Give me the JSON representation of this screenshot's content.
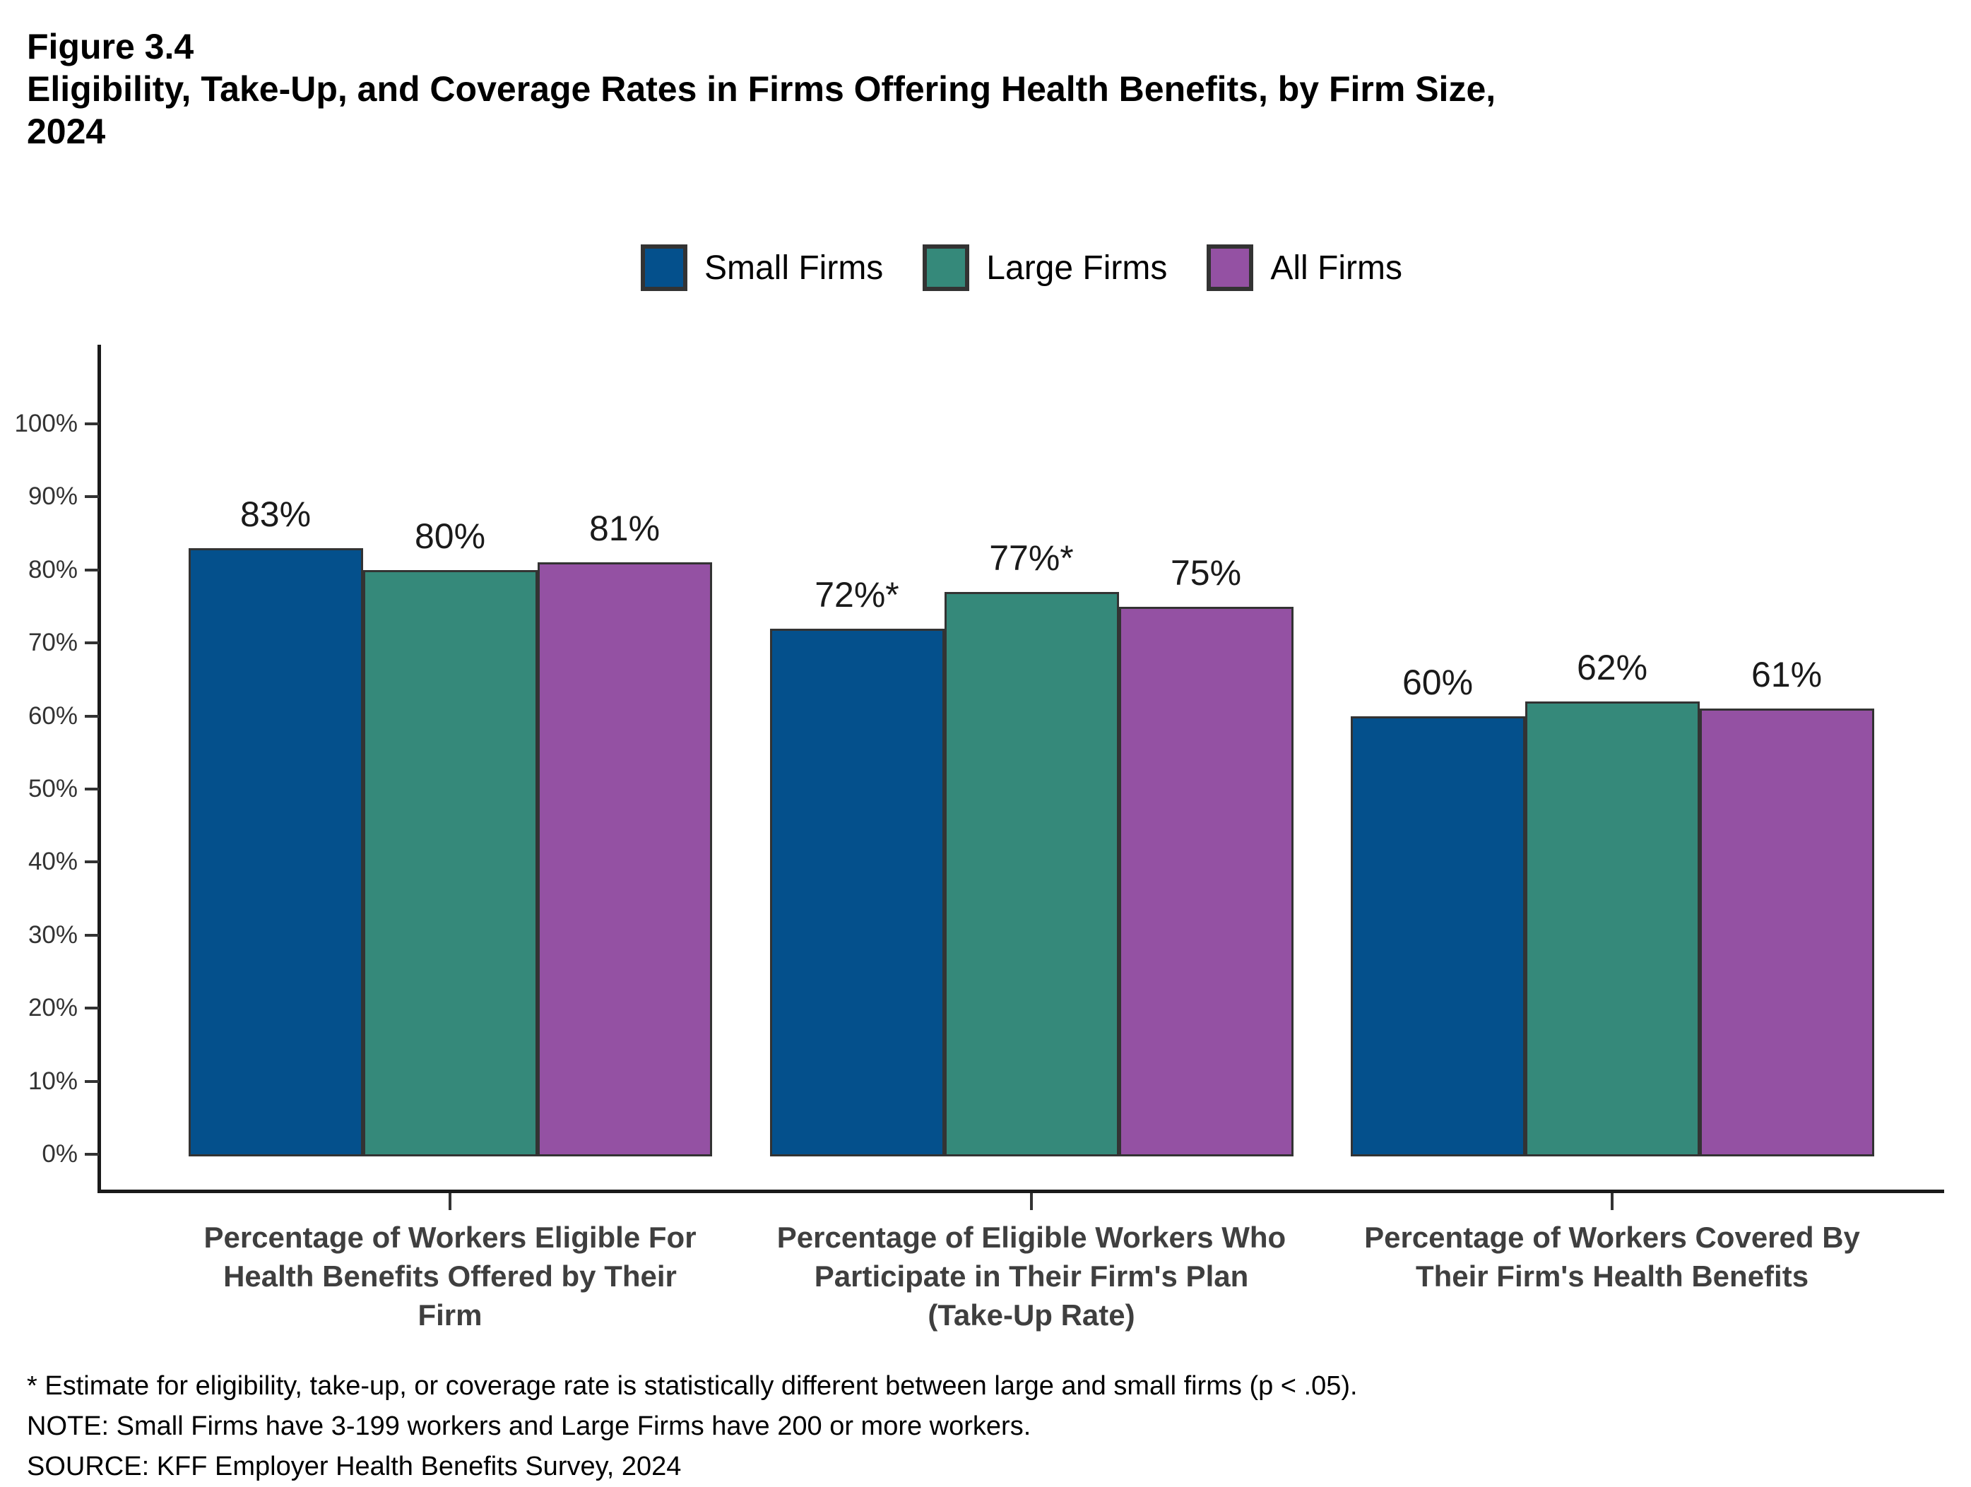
{
  "figure": {
    "label": "Figure 3.4",
    "title_lines": [
      "Eligibility, Take-Up, and Coverage Rates in Firms Offering Health Benefits, by Firm Size,",
      "2024"
    ]
  },
  "legend": [
    {
      "label": "Small Firms",
      "color": "#04508c"
    },
    {
      "label": "Large Firms",
      "color": "#35897a"
    },
    {
      "label": "All Firms",
      "color": "#9451a3"
    }
  ],
  "chart_data": {
    "type": "bar",
    "title": "Eligibility, Take-Up, and Coverage Rates in Firms Offering Health Benefits, by Firm Size, 2024",
    "categories": [
      "Percentage of Workers Eligible For Health Benefits Offered by Their Firm",
      "Percentage of Eligible Workers Who Participate in Their Firm's Plan (Take-Up Rate)",
      "Percentage of Workers Covered By Their Firm's Health Benefits"
    ],
    "category_lines": [
      [
        "Percentage of Workers Eligible For",
        "Health Benefits Offered by Their",
        "Firm"
      ],
      [
        "Percentage of Eligible Workers Who",
        "Participate in Their Firm's Plan",
        "(Take-Up Rate)"
      ],
      [
        "Percentage of Workers Covered By",
        "Their Firm's Health Benefits"
      ]
    ],
    "series": [
      {
        "name": "Small Firms",
        "color": "#04508c",
        "values": [
          83,
          72,
          60
        ],
        "labels": [
          "83%",
          "72%*",
          "60%"
        ]
      },
      {
        "name": "Large Firms",
        "color": "#35897a",
        "values": [
          80,
          77,
          62
        ],
        "labels": [
          "80%",
          "77%*",
          "62%"
        ]
      },
      {
        "name": "All Firms",
        "color": "#9451a3",
        "values": [
          81,
          75,
          61
        ],
        "labels": [
          "81%",
          "75%",
          "61%"
        ]
      }
    ],
    "xlabel": "",
    "ylabel": "",
    "ylim": [
      0,
      100
    ],
    "ytick_labels": [
      "0%",
      "10%",
      "20%",
      "30%",
      "40%",
      "50%",
      "60%",
      "70%",
      "80%",
      "90%",
      "100%"
    ],
    "grid": false,
    "legend_position": "top",
    "bar_border_color": "#333333"
  },
  "footnotes": [
    "* Estimate for eligibility, take-up, or coverage rate is statistically different between large and small firms (p < .05).",
    "NOTE: Small Firms have 3-199 workers and Large Firms have 200 or more workers.",
    "SOURCE: KFF Employer Health Benefits Survey, 2024"
  ]
}
